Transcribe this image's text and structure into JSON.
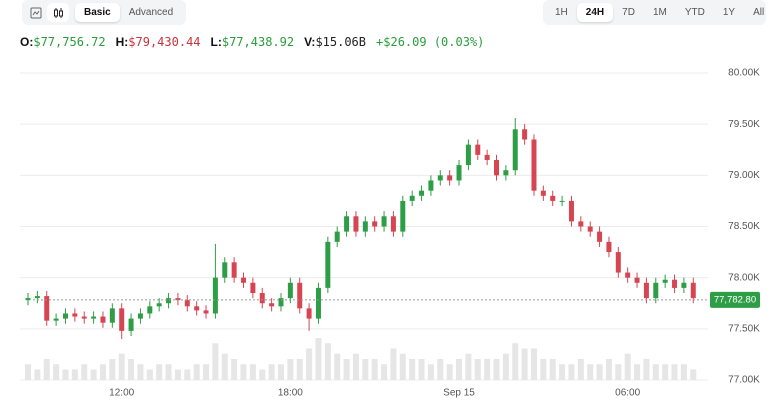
{
  "toolbar": {
    "modes": [
      "Basic",
      "Advanced"
    ],
    "active_mode": "Basic",
    "ranges": [
      "1H",
      "24H",
      "7D",
      "1M",
      "YTD",
      "1Y",
      "All"
    ],
    "active_range": "24H"
  },
  "stats": [
    {
      "label": "O:",
      "value": "$77,756.72",
      "color": "#2a9d3c"
    },
    {
      "label": "H:",
      "value": "$79,430.44",
      "color": "#c8323c"
    },
    {
      "label": "L:",
      "value": "$77,438.92",
      "color": "#2a9d3c"
    },
    {
      "label": "V:",
      "value": "$15.06B",
      "color": "#222222"
    }
  ],
  "change": {
    "text": "+$26.09 (0.03%)",
    "color": "#2a9d3c"
  },
  "chart_data": {
    "type": "candlestick",
    "categories": [
      null,
      null,
      null,
      null,
      null,
      null,
      null,
      null,
      null,
      null,
      "12:00",
      null,
      null,
      null,
      null,
      null,
      null,
      null,
      null,
      null,
      null,
      null,
      null,
      null,
      null,
      null,
      null,
      null,
      "18:00",
      null,
      null,
      null,
      null,
      null,
      null,
      null,
      null,
      null,
      null,
      null,
      null,
      null,
      null,
      null,
      null,
      null,
      "Sep 15",
      null,
      null,
      null,
      null,
      null,
      null,
      null,
      null,
      null,
      null,
      null,
      null,
      null,
      null,
      null,
      null,
      null,
      "06:00",
      null,
      null,
      null,
      null,
      null,
      null,
      null
    ],
    "open": [
      77780,
      77800,
      77820,
      77580,
      77600,
      77650,
      77620,
      77600,
      77620,
      77560,
      77700,
      77480,
      77600,
      77650,
      77720,
      77750,
      77800,
      77780,
      77720,
      77680,
      77650,
      78000,
      78150,
      78000,
      77950,
      77850,
      77750,
      77720,
      77800,
      77950,
      77700,
      77600,
      77900,
      78350,
      78450,
      78600,
      78450,
      78550,
      78500,
      78600,
      78450,
      78750,
      78800,
      78850,
      78950,
      79000,
      78950,
      79100,
      79300,
      79200,
      79150,
      79000,
      79050,
      79450,
      79350,
      78850,
      78800,
      78750,
      78750,
      78550,
      78500,
      78450,
      78350,
      78250,
      78050,
      78000,
      77950,
      77800,
      77950,
      77980,
      77900,
      77950
    ],
    "high": [
      77850,
      77870,
      77870,
      77650,
      77700,
      77700,
      77670,
      77670,
      77670,
      77750,
      77750,
      77650,
      77700,
      77770,
      77800,
      77850,
      77850,
      77830,
      77770,
      77730,
      78330,
      78200,
      78200,
      78050,
      78000,
      77900,
      77800,
      77850,
      78000,
      78000,
      77750,
      77950,
      78400,
      78500,
      78650,
      78650,
      78600,
      78600,
      78650,
      78650,
      78800,
      78850,
      78900,
      79000,
      79050,
      79050,
      79150,
      79350,
      79350,
      79250,
      79200,
      79100,
      79560,
      79500,
      79400,
      78900,
      78850,
      78800,
      78800,
      78600,
      78550,
      78500,
      78400,
      78300,
      78100,
      78050,
      78000,
      78000,
      78030,
      78030,
      78000,
      78000
    ],
    "low": [
      77730,
      77750,
      77530,
      77530,
      77550,
      77570,
      77550,
      77550,
      77510,
      77510,
      77400,
      77430,
      77550,
      77600,
      77670,
      77700,
      77730,
      77670,
      77630,
      77600,
      77600,
      77950,
      77950,
      77900,
      77800,
      77700,
      77670,
      77670,
      77750,
      77650,
      77480,
      77550,
      77850,
      78300,
      78400,
      78400,
      78400,
      78450,
      78450,
      78400,
      78400,
      78700,
      78750,
      78800,
      78900,
      78900,
      78900,
      79050,
      79150,
      79100,
      78950,
      78950,
      79000,
      79300,
      78800,
      78750,
      78700,
      78700,
      78500,
      78450,
      78400,
      78300,
      78200,
      78000,
      77950,
      77900,
      77750,
      77750,
      77900,
      77850,
      77850,
      77750
    ],
    "close": [
      77800,
      77820,
      77580,
      77600,
      77650,
      77620,
      77600,
      77620,
      77560,
      77700,
      77480,
      77600,
      77650,
      77720,
      77750,
      77800,
      77780,
      77720,
      77680,
      77650,
      78000,
      78150,
      78000,
      77950,
      77850,
      77750,
      77720,
      77800,
      77950,
      77700,
      77600,
      77900,
      78350,
      78450,
      78600,
      78450,
      78550,
      78500,
      78600,
      78450,
      78750,
      78800,
      78850,
      78950,
      79000,
      78950,
      79100,
      79300,
      79200,
      79150,
      79000,
      79050,
      79450,
      79350,
      78850,
      78800,
      78750,
      78750,
      78550,
      78500,
      78450,
      78350,
      78250,
      78050,
      78000,
      77950,
      77800,
      77950,
      77980,
      77900,
      77950,
      77800
    ],
    "volume": [
      3,
      2,
      4,
      3,
      2,
      2,
      3,
      2,
      3,
      4,
      5,
      4,
      3,
      2,
      3,
      3,
      2,
      2,
      3,
      3,
      7,
      5,
      4,
      3,
      3,
      2,
      3,
      3,
      4,
      4,
      6,
      8,
      7,
      5,
      4,
      5,
      4,
      4,
      3,
      6,
      5,
      4,
      4,
      3,
      4,
      3,
      4,
      5,
      4,
      4,
      4,
      5,
      7,
      6,
      6,
      4,
      4,
      3,
      3,
      4,
      3,
      3,
      4,
      3,
      5,
      3,
      4,
      3,
      3,
      3,
      3,
      2
    ],
    "up_color": "#2e9e46",
    "down_color": "#d64552",
    "volume_color": "#e6e6e6",
    "ylim": [
      77000,
      80000
    ],
    "yticks": [
      {
        "value": 77000,
        "label": "77.00K"
      },
      {
        "value": 77500,
        "label": "77.50K"
      },
      {
        "value": 78000,
        "label": "78.00K"
      },
      {
        "value": 78500,
        "label": "78.50K"
      },
      {
        "value": 79000,
        "label": "79.00K"
      },
      {
        "value": 79500,
        "label": "79.50K"
      },
      {
        "value": 80000,
        "label": "80.00K"
      }
    ],
    "grid": true,
    "last_price": {
      "value": 77782.8,
      "label": "77,782.80",
      "color": "#2e9e46"
    }
  }
}
